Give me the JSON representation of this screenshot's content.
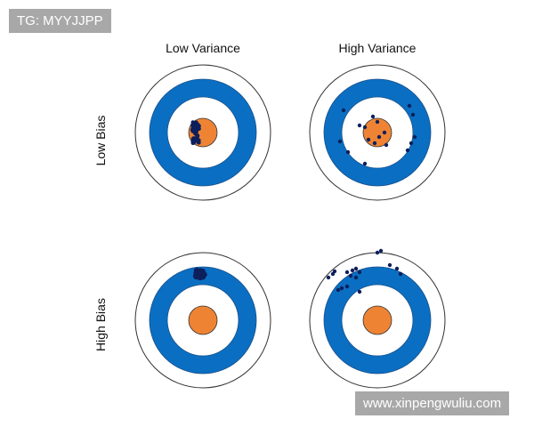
{
  "watermarks": {
    "top_left": "TG: MYYJJPP",
    "bottom_right": "www.xinpengwuliu.com"
  },
  "column_labels": [
    "Low Variance",
    "High Variance"
  ],
  "row_labels": [
    "Low Bias",
    "High Bias"
  ],
  "colors": {
    "ring_blue": "#0a6fc2",
    "bullseye_orange": "#ee8433",
    "dot_navy": "#0d1f5c",
    "outline": "#333333"
  },
  "targets": [
    {
      "bias": "Low Bias",
      "variance": "Low Variance"
    },
    {
      "bias": "Low Bias",
      "variance": "High Variance"
    },
    {
      "bias": "High Bias",
      "variance": "Low Variance"
    },
    {
      "bias": "High Bias",
      "variance": "High Variance"
    }
  ]
}
